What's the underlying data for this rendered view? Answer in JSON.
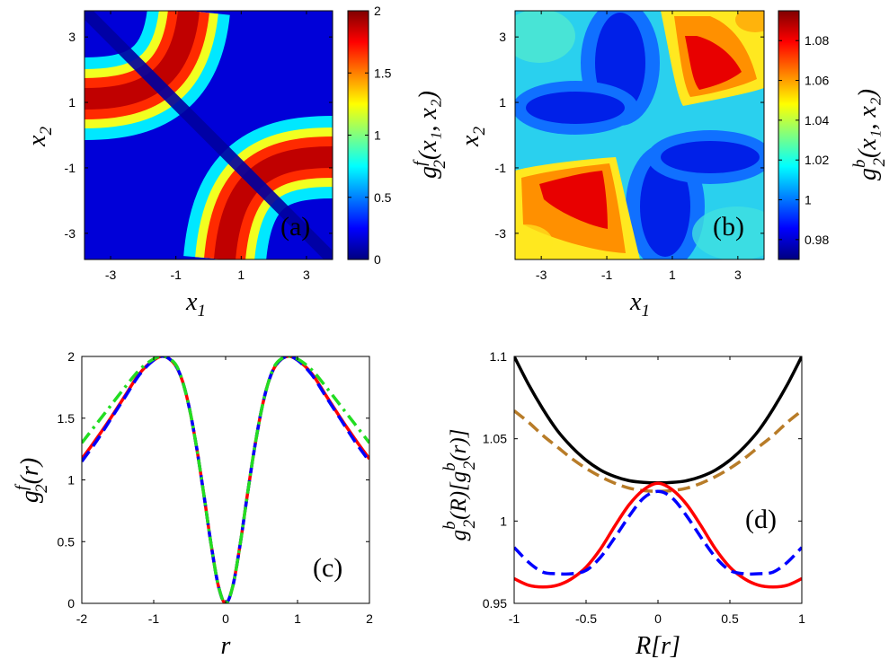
{
  "chart_data": [
    {
      "id": "a",
      "type": "heatmap",
      "panel_label": "(a)",
      "xlabel": {
        "var": "x",
        "sub": "1"
      },
      "ylabel": {
        "var": "x",
        "sub": "2"
      },
      "xlim": [
        -3.8,
        3.8
      ],
      "ylim": [
        -3.8,
        3.8
      ],
      "xticks": [
        "-3",
        "-1",
        "1",
        "3"
      ],
      "yticks": [
        "3",
        "1",
        "-1",
        "-3"
      ],
      "colorbar": {
        "range": [
          0,
          2
        ],
        "ticks": [
          "0",
          "0.5",
          "1",
          "1.5",
          "2"
        ],
        "label": {
          "var": "g",
          "sub": "2",
          "sup": "f",
          "args": "(x₁, x₂)"
        }
      }
    },
    {
      "id": "b",
      "type": "heatmap",
      "panel_label": "(b)",
      "xlabel": {
        "var": "x",
        "sub": "1"
      },
      "ylabel": {
        "var": "x",
        "sub": "2"
      },
      "xlim": [
        -3.8,
        3.8
      ],
      "ylim": [
        -3.8,
        3.8
      ],
      "xticks": [
        "-3",
        "-1",
        "1",
        "3"
      ],
      "yticks": [
        "3",
        "1",
        "-1",
        "-3"
      ],
      "colorbar": {
        "range": [
          0.97,
          1.095
        ],
        "ticks": [
          "0.98",
          "1",
          "1.02",
          "1.04",
          "1.06",
          "1.08"
        ],
        "label": {
          "var": "g",
          "sub": "2",
          "sup": "b",
          "args": "(x₁, x₂)"
        }
      }
    },
    {
      "id": "c",
      "type": "line",
      "panel_label": "(c)",
      "xlabel": "r",
      "ylabel": {
        "var": "g",
        "sub": "2",
        "sup": "f",
        "args": "(r)"
      },
      "xlim": [
        -2,
        2
      ],
      "ylim": [
        0,
        2
      ],
      "xticks": [
        "-2",
        "-1",
        "0",
        "1",
        "2"
      ],
      "yticks": [
        "0",
        "0.5",
        "1",
        "1.5",
        "2"
      ],
      "series": [
        {
          "name": "red solid",
          "color": "#ff0000",
          "style": "solid",
          "x": [
            -2,
            -1.8,
            -1.6,
            -1.4,
            -1.2,
            -1.0,
            -0.85,
            -0.7,
            -0.6,
            -0.5,
            -0.4,
            -0.3,
            -0.2,
            -0.1,
            0,
            0.1,
            0.2,
            0.3,
            0.4,
            0.5,
            0.6,
            0.7,
            0.85,
            1.0,
            1.2,
            1.4,
            1.6,
            1.8,
            2.0
          ],
          "y": [
            1.17,
            1.33,
            1.5,
            1.68,
            1.86,
            1.97,
            2.0,
            1.93,
            1.8,
            1.57,
            1.25,
            0.87,
            0.47,
            0.14,
            0,
            0.14,
            0.47,
            0.87,
            1.25,
            1.57,
            1.8,
            1.93,
            2.0,
            1.97,
            1.86,
            1.68,
            1.5,
            1.33,
            1.17
          ]
        },
        {
          "name": "blue dashed",
          "color": "#0000ff",
          "style": "dashed",
          "x": [
            -2,
            -1.8,
            -1.6,
            -1.4,
            -1.2,
            -1.0,
            -0.85,
            -0.7,
            -0.6,
            -0.5,
            -0.4,
            -0.3,
            -0.2,
            -0.1,
            0,
            0.1,
            0.2,
            0.3,
            0.4,
            0.5,
            0.6,
            0.7,
            0.85,
            1.0,
            1.2,
            1.4,
            1.6,
            1.8,
            2.0
          ],
          "y": [
            1.15,
            1.31,
            1.49,
            1.67,
            1.85,
            1.97,
            2.0,
            1.93,
            1.8,
            1.57,
            1.25,
            0.87,
            0.47,
            0.14,
            0,
            0.14,
            0.47,
            0.87,
            1.25,
            1.57,
            1.8,
            1.93,
            2.0,
            1.97,
            1.85,
            1.67,
            1.49,
            1.31,
            1.15
          ]
        },
        {
          "name": "green dash-dot",
          "color": "#22dd22",
          "style": "dashdot",
          "x": [
            -2,
            -1.8,
            -1.6,
            -1.4,
            -1.2,
            -1.0,
            -0.85,
            -0.7,
            -0.6,
            -0.5,
            -0.4,
            -0.3,
            -0.2,
            -0.1,
            0,
            0.1,
            0.2,
            0.3,
            0.4,
            0.5,
            0.6,
            0.7,
            0.85,
            1.0,
            1.2,
            1.4,
            1.6,
            1.8,
            2.0
          ],
          "y": [
            1.3,
            1.45,
            1.6,
            1.75,
            1.89,
            1.98,
            2.0,
            1.94,
            1.8,
            1.57,
            1.25,
            0.87,
            0.47,
            0.14,
            0,
            0.14,
            0.47,
            0.87,
            1.25,
            1.57,
            1.8,
            1.94,
            2.0,
            1.98,
            1.89,
            1.75,
            1.6,
            1.45,
            1.3
          ]
        }
      ]
    },
    {
      "id": "d",
      "type": "line",
      "panel_label": "(d)",
      "xlabel": "R[r]",
      "ylabel": {
        "var": "g",
        "sub": "2",
        "sup": "b",
        "args": "(R)[g",
        "sub2": "2",
        "sup2": "b",
        "args2": "(r)]"
      },
      "xlim": [
        -1,
        1
      ],
      "ylim": [
        0.95,
        1.1
      ],
      "xticks": [
        "-1",
        "-0.5",
        "0",
        "0.5",
        "1"
      ],
      "yticks": [
        "0.95",
        "1",
        "1.05",
        "1.1"
      ],
      "series": [
        {
          "name": "black solid",
          "color": "#000000",
          "style": "solid",
          "x": [
            -1,
            -0.9,
            -0.8,
            -0.7,
            -0.6,
            -0.5,
            -0.4,
            -0.3,
            -0.2,
            -0.1,
            0,
            0.1,
            0.2,
            0.3,
            0.4,
            0.5,
            0.6,
            0.7,
            0.8,
            0.9,
            1.0
          ],
          "y": [
            1.1,
            1.083,
            1.068,
            1.055,
            1.045,
            1.037,
            1.031,
            1.027,
            1.0245,
            1.0235,
            1.0232,
            1.0235,
            1.0245,
            1.027,
            1.031,
            1.037,
            1.045,
            1.055,
            1.068,
            1.083,
            1.1
          ]
        },
        {
          "name": "brown dashed",
          "color": "#b87c28",
          "style": "dashed",
          "x": [
            -1,
            -0.9,
            -0.8,
            -0.7,
            -0.6,
            -0.5,
            -0.4,
            -0.3,
            -0.2,
            -0.1,
            0,
            0.1,
            0.2,
            0.3,
            0.4,
            0.5,
            0.6,
            0.7,
            0.8,
            0.9,
            1.0
          ],
          "y": [
            1.067,
            1.06,
            1.052,
            1.045,
            1.038,
            1.032,
            1.027,
            1.023,
            1.02,
            1.0185,
            1.018,
            1.0185,
            1.02,
            1.023,
            1.027,
            1.032,
            1.038,
            1.045,
            1.052,
            1.06,
            1.067
          ]
        },
        {
          "name": "red solid",
          "color": "#ff0000",
          "style": "solid",
          "x": [
            -1,
            -0.9,
            -0.8,
            -0.7,
            -0.6,
            -0.5,
            -0.4,
            -0.3,
            -0.2,
            -0.1,
            0,
            0.1,
            0.2,
            0.3,
            0.4,
            0.5,
            0.6,
            0.7,
            0.8,
            0.9,
            1.0
          ],
          "y": [
            0.965,
            0.961,
            0.96,
            0.961,
            0.965,
            0.972,
            0.983,
            0.997,
            1.01,
            1.019,
            1.023,
            1.019,
            1.01,
            0.997,
            0.983,
            0.972,
            0.965,
            0.961,
            0.96,
            0.961,
            0.965
          ]
        },
        {
          "name": "blue dashed",
          "color": "#0000ff",
          "style": "dashed",
          "x": [
            -1,
            -0.9,
            -0.8,
            -0.7,
            -0.6,
            -0.5,
            -0.4,
            -0.3,
            -0.2,
            -0.1,
            0,
            0.1,
            0.2,
            0.3,
            0.4,
            0.5,
            0.6,
            0.7,
            0.8,
            0.9,
            1.0
          ],
          "y": [
            0.984,
            0.975,
            0.969,
            0.968,
            0.968,
            0.97,
            0.978,
            0.99,
            1.003,
            1.014,
            1.018,
            1.014,
            1.003,
            0.99,
            0.978,
            0.97,
            0.968,
            0.968,
            0.969,
            0.975,
            0.984
          ]
        }
      ]
    }
  ]
}
